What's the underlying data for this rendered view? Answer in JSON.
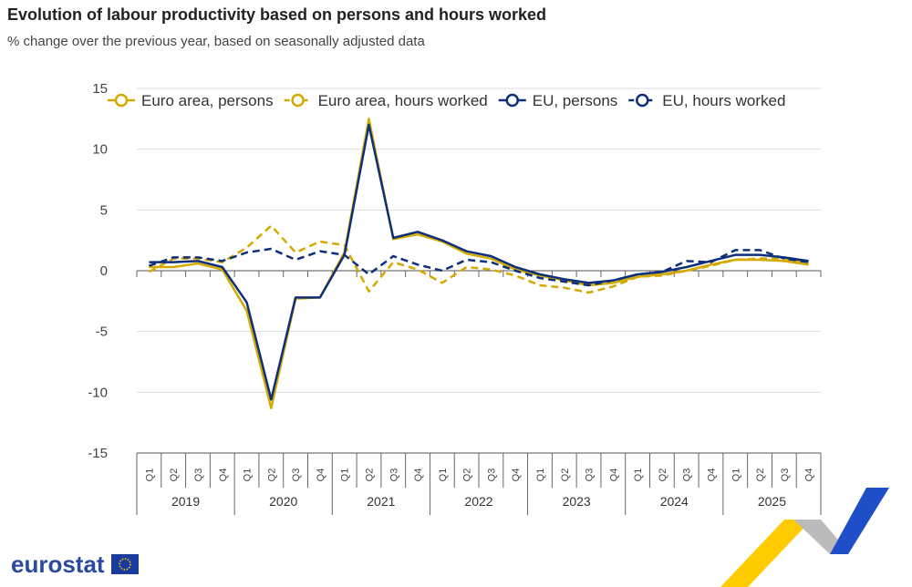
{
  "title": "Evolution of labour productivity based on persons and hours worked",
  "subtitle": "% change over the previous year, based on seasonally adjusted data",
  "logo": "eurostat",
  "chart_data": {
    "type": "line",
    "ylim": [
      -15,
      15
    ],
    "yticks": [
      15,
      10,
      5,
      0,
      -5,
      -10,
      -15
    ],
    "ytick_labels": [
      "15",
      "10",
      "5",
      "0",
      "-5",
      "-10",
      "-15"
    ],
    "years": [
      "2019",
      "2020",
      "2021",
      "2022",
      "2023",
      "2024",
      "2025"
    ],
    "quarters": [
      "Q1",
      "Q2",
      "Q3",
      "Q4"
    ],
    "grid": true,
    "legend": "top",
    "series": [
      {
        "name": "Euro area, persons",
        "color": "#d4a900",
        "dash": false,
        "values": [
          0.3,
          0.3,
          0.6,
          0.1,
          -3.3,
          -11.3,
          -2.3,
          -2.2,
          1.5,
          12.5,
          2.6,
          3.0,
          2.4,
          1.4,
          1.0,
          0.1,
          -0.4,
          -0.8,
          -1.2,
          -1.0,
          -0.5,
          -0.3,
          0.0,
          0.5,
          0.9,
          0.9,
          0.8,
          0.5
        ]
      },
      {
        "name": "Euro area, hours worked",
        "color": "#d4a900",
        "dash": true,
        "values": [
          -0.1,
          1.0,
          1.0,
          0.7,
          1.9,
          3.7,
          1.5,
          2.4,
          2.1,
          -1.7,
          0.7,
          0.1,
          -1.0,
          0.3,
          0.1,
          -0.4,
          -1.2,
          -1.4,
          -1.8,
          -1.3,
          -0.5,
          -0.4,
          0.0,
          0.4,
          0.9,
          1.0,
          1.0,
          0.6
        ]
      },
      {
        "name": "EU, persons",
        "color": "#0e2f7a",
        "dash": false,
        "values": [
          0.7,
          0.7,
          0.8,
          0.3,
          -2.6,
          -10.6,
          -2.2,
          -2.2,
          1.3,
          12.0,
          2.7,
          3.2,
          2.5,
          1.6,
          1.2,
          0.3,
          -0.3,
          -0.7,
          -1.0,
          -0.8,
          -0.3,
          -0.1,
          0.3,
          0.8,
          1.3,
          1.3,
          1.1,
          0.8
        ]
      },
      {
        "name": "EU, hours worked",
        "color": "#0e2f7a",
        "dash": true,
        "values": [
          0.4,
          1.1,
          1.1,
          0.8,
          1.5,
          1.8,
          0.9,
          1.6,
          1.3,
          -0.3,
          1.2,
          0.5,
          0.0,
          0.9,
          0.7,
          0.0,
          -0.6,
          -0.9,
          -1.2,
          -0.8,
          -0.3,
          -0.1,
          0.8,
          0.7,
          1.7,
          1.7,
          1.0,
          0.7
        ]
      }
    ]
  }
}
